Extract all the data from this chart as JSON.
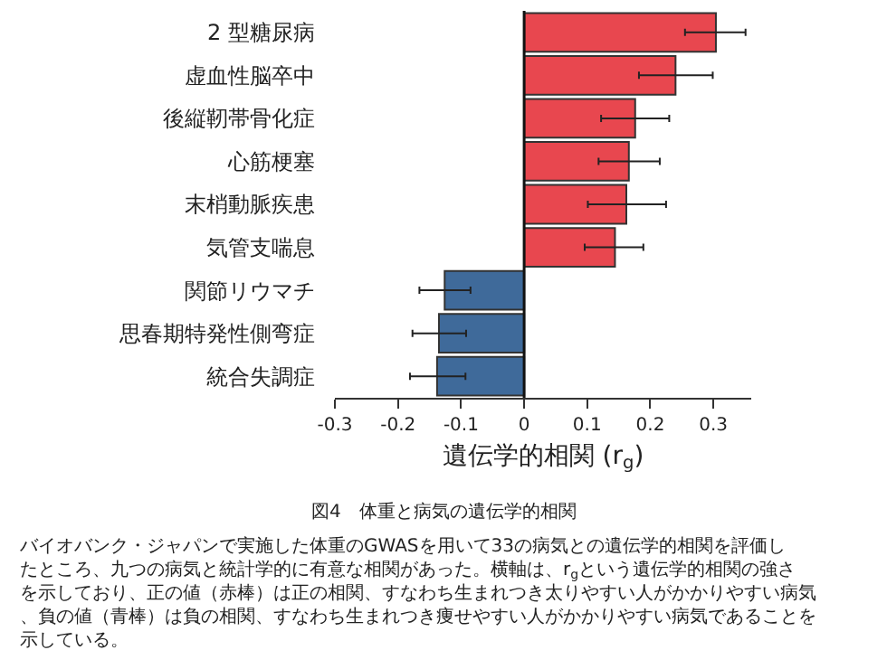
{
  "chart_data": {
    "type": "bar",
    "orientation": "horizontal",
    "categories": [
      "2 型糖尿病",
      "虚血性脳卒中",
      "後縦靭帯骨化症",
      "心筋梗塞",
      "末梢動脈疾患",
      "気管支喘息",
      "関節リウマチ",
      "思春期特発性側弯症",
      "統合失調症"
    ],
    "values": [
      0.304,
      0.24,
      0.176,
      0.166,
      0.162,
      0.144,
      -0.126,
      -0.135,
      -0.138
    ],
    "errors": [
      [
        0.255,
        0.351
      ],
      [
        0.182,
        0.299
      ],
      [
        0.122,
        0.23
      ],
      [
        0.118,
        0.215
      ],
      [
        0.101,
        0.225
      ],
      [
        0.096,
        0.189
      ],
      [
        -0.166,
        -0.085
      ],
      [
        -0.177,
        -0.092
      ],
      [
        -0.181,
        -0.093
      ]
    ],
    "colors": [
      "#e8474f",
      "#e8474f",
      "#e8474f",
      "#e8474f",
      "#e8474f",
      "#e8474f",
      "#3f6a9a",
      "#3f6a9a",
      "#3f6a9a"
    ],
    "xlabel": "遺伝学的相関 (r$_{g}$)",
    "xlim": [
      -0.3,
      0.36
    ],
    "xticks": [
      -0.3,
      -0.2,
      -0.1,
      0,
      0.1,
      0.2,
      0.3
    ],
    "ref_lines": [
      {
        "axis": "x",
        "value": 0
      }
    ],
    "annotations": [
      "図4　体重と病気の遺伝学的相関",
      "バイオバンク・ジャパンで実施した体重のGWASを用いて33の病気との遺伝学的相関を評価したところ、九つの病気と統計学的に有意な相関があった。横軸は、r$_{g}$という遺伝学的相関の強さを示しており、正の値（赤棒）は正の相関、すなわち生まれつき太りやすい人がかかりやすい病気、負の値（青棒）は負の相関、すなわち生まれつき痩せやすい人がかかりやすい病気であることを示している。"
    ]
  }
}
